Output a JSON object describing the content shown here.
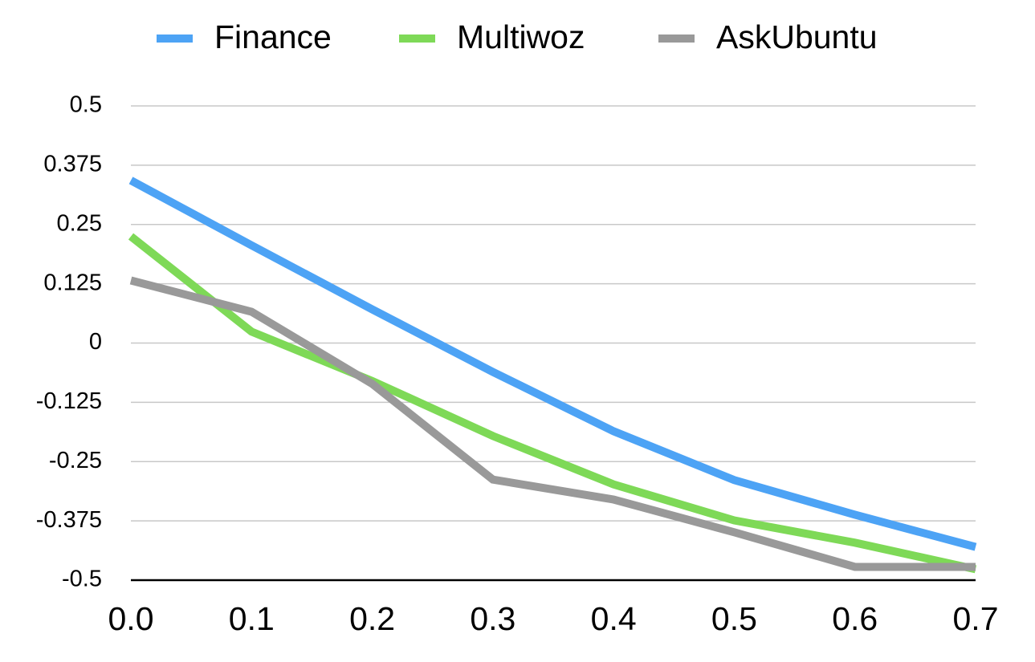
{
  "chart_data": {
    "type": "line",
    "legend": "top",
    "grid": true,
    "x": [
      0,
      0.1,
      0.2,
      0.3,
      0.4,
      0.5,
      0.6,
      0.7
    ],
    "xlim": [
      0,
      0.7
    ],
    "xticks": [
      {
        "value": 0,
        "label": "0.0"
      },
      0.1,
      0.2,
      0.3,
      0.4,
      0.5,
      0.6,
      0.7
    ],
    "ylim": [
      -0.5,
      0.5
    ],
    "yticks": [
      0.5,
      0.375,
      0.25,
      0.125,
      0,
      -0.125,
      -0.25,
      -0.375,
      -0.5
    ],
    "series": [
      {
        "name": "Finance",
        "color": "#4da3f5",
        "values": [
          0.343,
          0.206,
          0.071,
          -0.061,
          -0.186,
          -0.289,
          -0.362,
          -0.43
        ]
      },
      {
        "name": "Multiwoz",
        "color": "#7ed957",
        "values": [
          0.225,
          0.024,
          -0.08,
          -0.196,
          -0.298,
          -0.374,
          -0.421,
          -0.477
        ]
      },
      {
        "name": "AskUbuntu",
        "color": "#999999",
        "values": [
          0.132,
          0.066,
          -0.086,
          -0.288,
          -0.33,
          -0.399,
          -0.472,
          -0.472
        ]
      }
    ]
  }
}
